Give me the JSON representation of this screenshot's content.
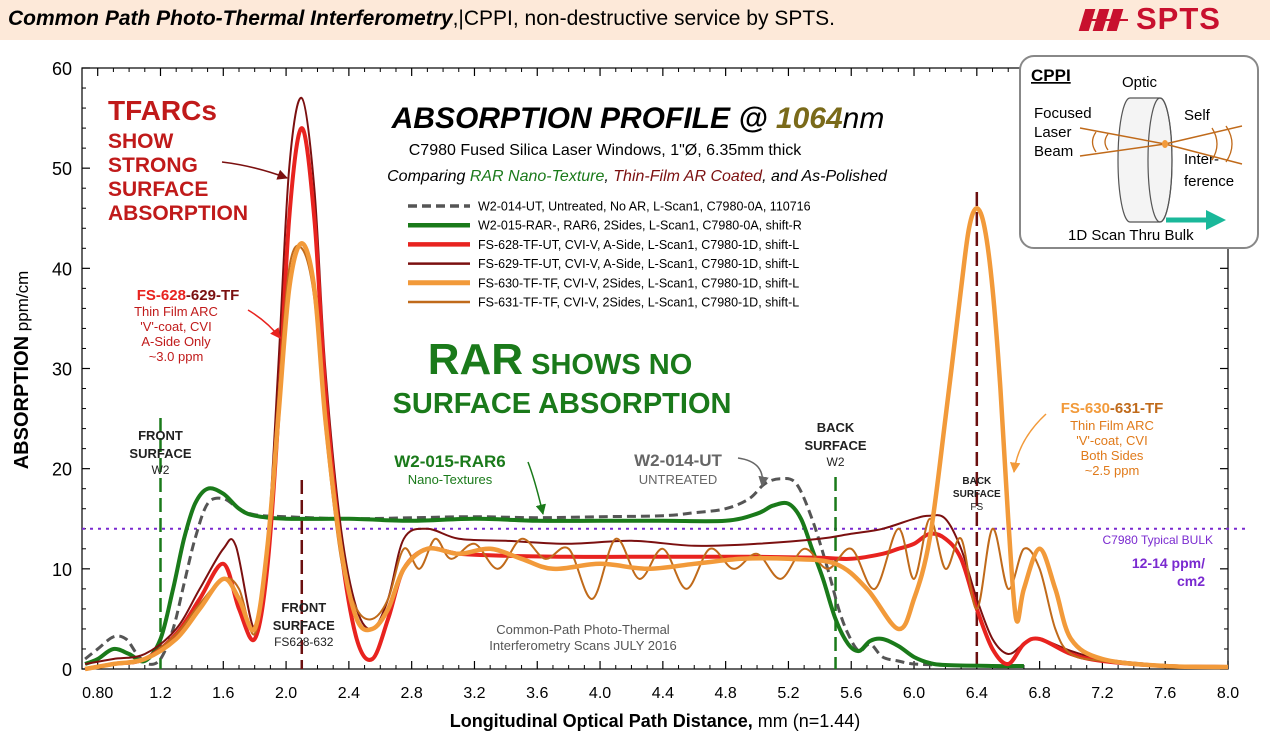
{
  "banner": {
    "title_bold": "Common Path Photo-Thermal Interferometry",
    "title_sep": ",|",
    "title_rest": "CPPI, non-destructive service by SPTS.",
    "logo_text": "SPTS",
    "bg_color": "#fde9d9",
    "logo_color": "#c8102e"
  },
  "chart_data": {
    "type": "line",
    "title_main": "ABSORPTION PROFILE @ ",
    "title_wave": "1064",
    "title_unit": "nm",
    "subtitle1": "C7980 Fused Silica Laser Windows, 1\"Ø, 6.35mm thick",
    "subtitle2_a": "Comparing ",
    "subtitle2_b": "RAR Nano-Texture",
    "subtitle2_c": ", ",
    "subtitle2_d": "Thin-Film AR Coated",
    "subtitle2_e": ", and As-Polished",
    "xlabel_bold": "Longitudinal Optical Path Distance,",
    "xlabel_rest": " mm  (n=1.44)",
    "ylabel_bold": "ABSORPTION",
    "ylabel_rest": " ppm/cm",
    "xlim": [
      0.7,
      8.0
    ],
    "ylim": [
      0,
      60
    ],
    "xticks": [
      "0.80",
      "1.2",
      "1.6",
      "2.0",
      "2.4",
      "2.8",
      "3.2",
      "3.6",
      "4.0",
      "4.4",
      "4.8",
      "5.2",
      "5.6",
      "6.0",
      "6.4",
      "6.8",
      "7.2",
      "7.6",
      "8.0"
    ],
    "yticks": [
      "0",
      "10",
      "20",
      "30",
      "40",
      "50",
      "60"
    ],
    "grid": false,
    "legend_position": "center-top",
    "series": [
      {
        "name": "W2-014-UT, Untreated, No AR, L-Scan1, C7980-0A, 110716",
        "color": "#555555",
        "dash": "dashed",
        "x": [
          0.72,
          0.8,
          0.9,
          0.98,
          1.05,
          1.12,
          1.2,
          1.28,
          1.35,
          1.42,
          1.5,
          1.6,
          1.7,
          1.8,
          2.0,
          2.4,
          2.8,
          3.2,
          3.6,
          4.0,
          4.4,
          4.6,
          4.8,
          4.95,
          5.05,
          5.15,
          5.25,
          5.35,
          5.45,
          5.52,
          5.58,
          5.65,
          5.72,
          5.8,
          5.9,
          6.0,
          6.2,
          6.4,
          6.6
        ],
        "y": [
          1,
          2,
          3.2,
          3,
          1.5,
          0.5,
          1,
          4,
          8.5,
          13,
          16.5,
          17,
          16,
          15.4,
          15.2,
          15,
          15.1,
          15.2,
          15.1,
          15.2,
          15.3,
          15.6,
          16,
          17,
          18.5,
          19,
          18.5,
          15,
          10,
          6,
          3.5,
          1.8,
          2.5,
          1.2,
          0.8,
          0.5,
          0.4,
          0.3,
          0.3
        ]
      },
      {
        "name": "W2-015-RAR-, RAR6, 2Sides,  L-Scan1, C7980-0A, shift-R",
        "color": "#1a7a1a",
        "dash": "solid",
        "x": [
          0.72,
          0.8,
          0.9,
          1.0,
          1.1,
          1.2,
          1.28,
          1.35,
          1.42,
          1.5,
          1.6,
          1.7,
          1.8,
          2.0,
          2.4,
          2.8,
          3.2,
          3.6,
          4.0,
          4.4,
          4.8,
          5.0,
          5.1,
          5.2,
          5.28,
          5.35,
          5.42,
          5.5,
          5.58,
          5.65,
          5.72,
          5.8,
          5.9,
          6.0,
          6.1,
          6.2,
          6.5,
          6.7
        ],
        "y": [
          0.5,
          1,
          2,
          1.5,
          0.8,
          3,
          8,
          13,
          16.5,
          18,
          17.5,
          16,
          15.3,
          15,
          15,
          14.8,
          15,
          14.8,
          14.8,
          14.8,
          14.8,
          15.5,
          16.3,
          16.5,
          15,
          12,
          9,
          5,
          2.5,
          1.8,
          2.8,
          3,
          2.3,
          1.2,
          0.6,
          0.4,
          0.3,
          0.3
        ]
      },
      {
        "name": "FS-628-TF-UT, CVI-V, A-Side,  L-Scan1, C7980-1D, shift-L",
        "color": "#e8231f",
        "dash": "solid",
        "x": [
          0.72,
          0.9,
          1.1,
          1.3,
          1.45,
          1.6,
          1.7,
          1.8,
          1.88,
          1.95,
          2.02,
          2.1,
          2.18,
          2.25,
          2.35,
          2.45,
          2.55,
          2.65,
          2.75,
          2.9,
          3.1,
          3.4,
          3.8,
          4.2,
          4.6,
          5.0,
          5.4,
          5.6,
          5.8,
          5.9,
          6.0,
          6.1,
          6.2,
          6.3,
          6.4,
          6.5,
          6.6,
          6.7,
          6.8,
          7.0,
          7.2,
          7.6,
          8.0
        ],
        "y": [
          0,
          0.5,
          1,
          3.5,
          7,
          10.5,
          6,
          3,
          10,
          25,
          45,
          54,
          45,
          28,
          12,
          3,
          1,
          5,
          10,
          12,
          11.5,
          11.3,
          11.2,
          11.2,
          11.2,
          11.2,
          11.1,
          11,
          11.5,
          12,
          12.5,
          13.5,
          13,
          11,
          6,
          2,
          0.5,
          2.5,
          3,
          1.5,
          0.8,
          0.3,
          0.2
        ]
      },
      {
        "name": "FS-629-TF-UT, CVI-V, A-Side,  L-Scan1, C7980-1D, shift-L",
        "color": "#7b1010",
        "dash": "solid",
        "x": [
          0.72,
          0.9,
          1.1,
          1.3,
          1.45,
          1.6,
          1.68,
          1.8,
          1.88,
          1.95,
          2.02,
          2.1,
          2.18,
          2.25,
          2.35,
          2.45,
          2.55,
          2.65,
          2.75,
          2.9,
          3.1,
          3.4,
          3.8,
          4.2,
          4.6,
          5.0,
          5.4,
          5.6,
          5.8,
          6.0,
          6.1,
          6.2,
          6.3,
          6.4,
          6.5,
          6.6,
          6.7,
          6.8,
          7.0,
          7.2,
          7.6,
          8.0
        ],
        "y": [
          0.5,
          1,
          1.5,
          4,
          8,
          12,
          12.3,
          4,
          12,
          30,
          50,
          57,
          48,
          30,
          14,
          6,
          4,
          7,
          13,
          14,
          13,
          12.8,
          12.5,
          12.8,
          12.3,
          12.5,
          13,
          13.5,
          14,
          15,
          15.3,
          15,
          12,
          7,
          3,
          1.5,
          2.5,
          3,
          1.8,
          1,
          0.4,
          0.3
        ]
      },
      {
        "name": "FS-630-TF-TF, CVI-V, 2Sides,  L-Scan1, C7980-1D, shift-L",
        "color": "#f29a3a",
        "dash": "solid",
        "x": [
          0.72,
          0.9,
          1.1,
          1.3,
          1.45,
          1.6,
          1.7,
          1.8,
          1.88,
          1.95,
          2.02,
          2.1,
          2.18,
          2.25,
          2.35,
          2.45,
          2.55,
          2.65,
          2.75,
          2.9,
          3.1,
          3.3,
          3.5,
          3.7,
          4.0,
          4.3,
          4.6,
          4.9,
          5.2,
          5.5,
          5.7,
          5.9,
          6.0,
          6.1,
          6.2,
          6.3,
          6.35,
          6.4,
          6.45,
          6.5,
          6.55,
          6.6,
          6.65,
          6.7,
          6.8,
          6.9,
          7.0,
          7.2,
          7.6,
          8.0
        ],
        "y": [
          0,
          0.5,
          1,
          3,
          6,
          9,
          7,
          4,
          12,
          25,
          38,
          42.5,
          38,
          25,
          12,
          5,
          4,
          6,
          10,
          12,
          11.5,
          12,
          11,
          10,
          10.5,
          10,
          10.5,
          11,
          11,
          10.5,
          8,
          4,
          7,
          13,
          25,
          38,
          44,
          46,
          44,
          38,
          28,
          15,
          5,
          8,
          12,
          8,
          3,
          1,
          0.3,
          0.2
        ]
      },
      {
        "name": "FS-631-TF-TF, CVI-V, 2Sides,  L-Scan1, C7980-1D, shift-L",
        "color": "#c06a1a",
        "dash": "solid",
        "x": [
          0.72,
          0.9,
          1.1,
          1.3,
          1.45,
          1.6,
          1.7,
          1.8,
          1.88,
          1.95,
          2.02,
          2.1,
          2.18,
          2.25,
          2.35,
          2.45,
          2.55,
          2.65,
          2.75,
          2.85,
          2.95,
          3.05,
          3.2,
          3.35,
          3.5,
          3.65,
          3.8,
          3.95,
          4.1,
          4.25,
          4.4,
          4.55,
          4.7,
          4.85,
          5.0,
          5.15,
          5.3,
          5.45,
          5.6,
          5.75,
          5.9,
          6.0,
          6.1,
          6.2,
          6.3,
          6.4,
          6.5,
          6.6,
          6.7,
          6.8,
          6.9,
          7.0,
          7.2,
          7.6,
          8.0
        ],
        "y": [
          0,
          0.5,
          1,
          3.5,
          6.5,
          9,
          8,
          3.5,
          12,
          27,
          40,
          42,
          37,
          24,
          11,
          6,
          5,
          7,
          12,
          10,
          13,
          11,
          12.5,
          10,
          13,
          11,
          12,
          7,
          13,
          9,
          12,
          8,
          12,
          10,
          11.5,
          9,
          12,
          10,
          12,
          8,
          14,
          9,
          15,
          10,
          13,
          6,
          14,
          8,
          12,
          10,
          4,
          1.5,
          0.8,
          0.3,
          0.2
        ]
      }
    ],
    "reference_line": {
      "y": 14,
      "label": "C7980 Typical BULK",
      "color": "#7a2ad0"
    },
    "surface_markers": [
      {
        "x": 1.2,
        "label1": "FRONT",
        "label2": "SURFACE",
        "label3": "W2",
        "color": "#1a7a1a"
      },
      {
        "x": 2.1,
        "label1": "FRONT",
        "label2": "SURFACE",
        "label3": "FS628-632",
        "color": "#6b0f0f"
      },
      {
        "x": 5.5,
        "label1": "BACK",
        "label2": "SURFACE",
        "label3": "W2",
        "color": "#1a7a1a"
      },
      {
        "x": 6.4,
        "label1": "BACK",
        "label2": "SURFACE",
        "label3": "FS",
        "color": "#6b0f0f"
      }
    ],
    "annotations": {
      "tfarcs_title": "TFARCs",
      "tfarcs_l1": "SHOW",
      "tfarcs_l2": "STRONG",
      "tfarcs_l3": "SURFACE",
      "tfarcs_l4": "ABSORPTION",
      "fs628_a": "FS-628",
      "fs628_b": "-629-TF",
      "fs628_d1": "Thin Film ARC",
      "fs628_d2": "'V'-coat, CVI",
      "fs628_d3": "A-Side Only",
      "fs628_d4": "~3.0 ppm",
      "rar_big": "RAR",
      "rar_shows": " SHOWS NO",
      "rar_line2": "SURFACE ABSORPTION",
      "w2015_label": "W2-015-RAR6",
      "w2015_sub": "Nano-Textures",
      "w2014_label": "W2-014-UT",
      "w2014_sub": "UNTREATED",
      "fs630_a": "FS-630",
      "fs630_b": "-631-TF",
      "fs630_d1": "Thin Film ARC",
      "fs630_d2": "'V'-coat, CVI",
      "fs630_d3": "Both Sides",
      "fs630_d4": "~2.5 ppm",
      "bulk_value1": "12-14 ppm/",
      "bulk_value2": "cm2",
      "credit1": "Common-Path Photo-Thermal",
      "credit2": "Interferometry Scans JULY 2016"
    },
    "inset": {
      "title": "CPPI",
      "optic": "Optic",
      "focused1": "Focused",
      "focused2": "Laser",
      "focused3": "Beam",
      "self": "Self",
      "inter1": "Inter-",
      "inter2": "ference",
      "scan": "1D Scan Thru Bulk"
    }
  }
}
